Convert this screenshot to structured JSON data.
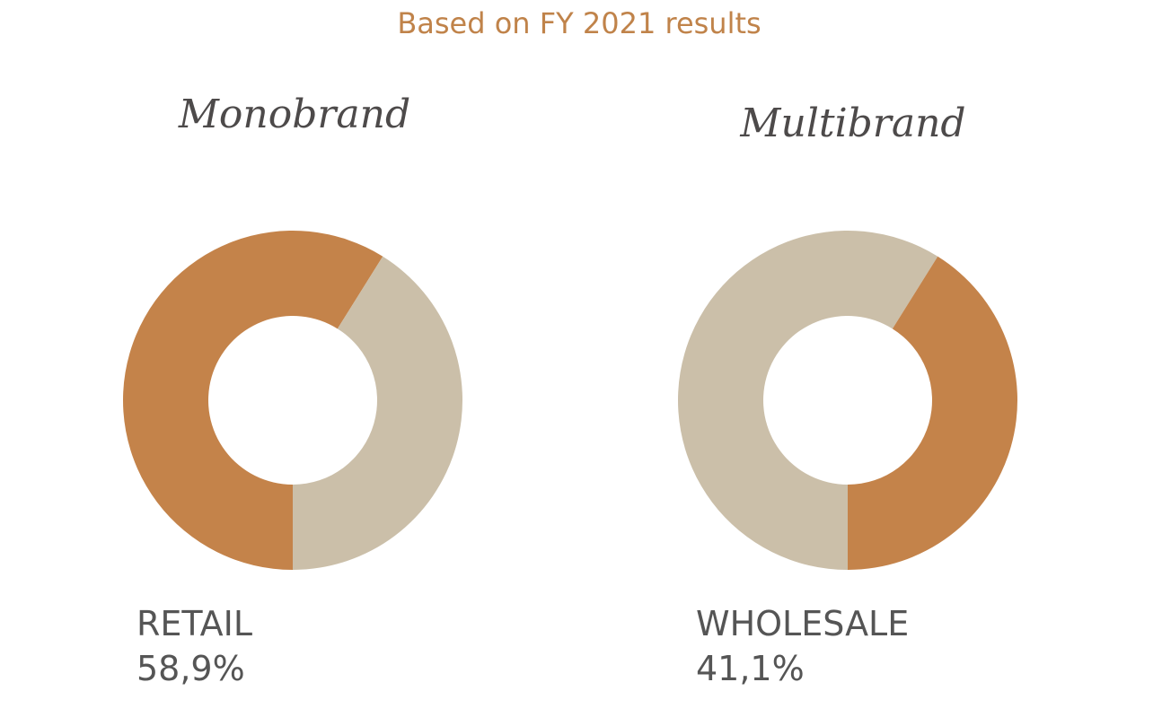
{
  "title": "Based on FY 2021 results",
  "chart_data": [
    {
      "type": "pie",
      "donut": true,
      "title": "Monobrand",
      "categories": [
        "RETAIL",
        null
      ],
      "values": [
        58.9,
        41.1
      ],
      "value_labels": [
        "58,9%",
        null
      ],
      "colors": [
        "#c4834a",
        "#cbbfa9"
      ]
    },
    {
      "type": "pie",
      "donut": true,
      "title": "Multibrand",
      "categories": [
        null,
        "WHOLESALE"
      ],
      "values": [
        58.9,
        41.1
      ],
      "value_labels": [
        null,
        "41,1%"
      ],
      "colors": [
        "#cbbfa9",
        "#c4834a"
      ]
    }
  ]
}
